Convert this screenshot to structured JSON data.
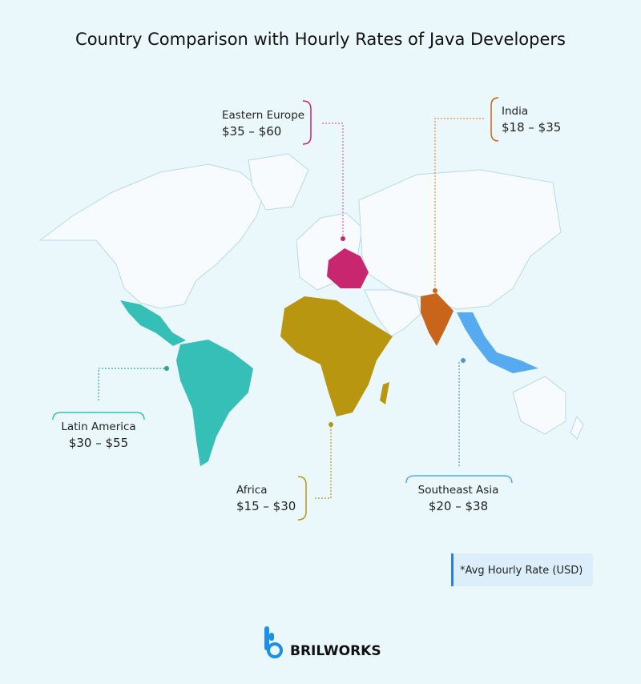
{
  "title": "Country Comparison with Hourly Rates of Java Developers",
  "regions": [
    {
      "name": "Eastern Europe",
      "range": "$35 – $60"
    },
    {
      "name": "India",
      "range": "$18 – $35"
    },
    {
      "name": "Latin America",
      "range": "$30 – $55"
    },
    {
      "name": "Africa",
      "range": "$15 – $30"
    },
    {
      "name": "Southeast Asia",
      "range": "$20 – $38"
    }
  ],
  "note": "*Avg Hourly Rate (USD)",
  "brand": "BRILWORKS"
}
